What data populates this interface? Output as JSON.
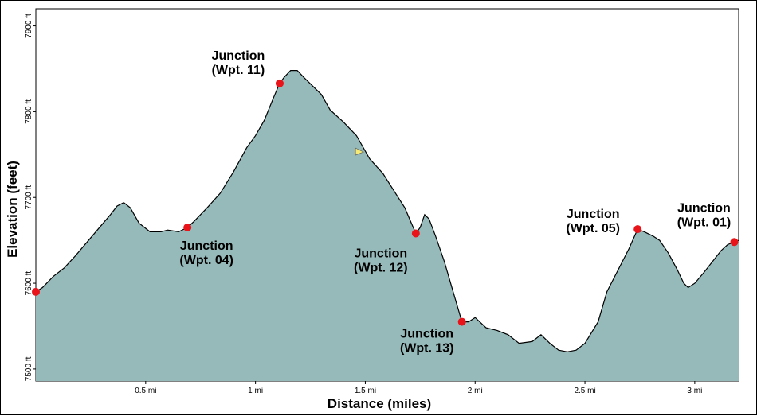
{
  "chart_data": {
    "type": "area",
    "xlabel": "Distance (miles)",
    "ylabel": "Elevation (feet)",
    "xlim": [
      0,
      3.2
    ],
    "ylim": [
      7486,
      7920
    ],
    "colors": {
      "fill": "#96baba",
      "line": "#000000",
      "marker": "#e8141a",
      "cursor": "#f5ea78"
    },
    "x_ticks": [
      {
        "value": 0.5,
        "label": "0.5 mi"
      },
      {
        "value": 1,
        "label": "1 mi"
      },
      {
        "value": 1.5,
        "label": "1.5 mi"
      },
      {
        "value": 2,
        "label": "2 mi"
      },
      {
        "value": 2.5,
        "label": "2.5 mi"
      },
      {
        "value": 3,
        "label": "3 mi"
      }
    ],
    "y_ticks": [
      {
        "value": 7500,
        "label": "7500 ft"
      },
      {
        "value": 7600,
        "label": "7600 ft"
      },
      {
        "value": 7700,
        "label": "7700 ft"
      },
      {
        "value": 7800,
        "label": "7800 ft"
      },
      {
        "value": 7900,
        "label": "7900 ft"
      }
    ],
    "profile": [
      [
        0.0,
        7590
      ],
      [
        0.03,
        7595
      ],
      [
        0.08,
        7608
      ],
      [
        0.13,
        7618
      ],
      [
        0.18,
        7632
      ],
      [
        0.24,
        7650
      ],
      [
        0.3,
        7668
      ],
      [
        0.34,
        7680
      ],
      [
        0.37,
        7690
      ],
      [
        0.4,
        7694
      ],
      [
        0.43,
        7688
      ],
      [
        0.47,
        7670
      ],
      [
        0.52,
        7660
      ],
      [
        0.57,
        7660
      ],
      [
        0.6,
        7662
      ],
      [
        0.65,
        7660
      ],
      [
        0.69,
        7665
      ],
      [
        0.72,
        7672
      ],
      [
        0.78,
        7688
      ],
      [
        0.84,
        7705
      ],
      [
        0.9,
        7730
      ],
      [
        0.96,
        7758
      ],
      [
        1.0,
        7772
      ],
      [
        1.04,
        7790
      ],
      [
        1.08,
        7815
      ],
      [
        1.11,
        7833
      ],
      [
        1.13,
        7840
      ],
      [
        1.16,
        7848
      ],
      [
        1.19,
        7848
      ],
      [
        1.22,
        7840
      ],
      [
        1.26,
        7830
      ],
      [
        1.3,
        7820
      ],
      [
        1.34,
        7802
      ],
      [
        1.4,
        7788
      ],
      [
        1.46,
        7772
      ],
      [
        1.52,
        7745
      ],
      [
        1.58,
        7728
      ],
      [
        1.64,
        7704
      ],
      [
        1.68,
        7688
      ],
      [
        1.71,
        7670
      ],
      [
        1.73,
        7658
      ],
      [
        1.75,
        7665
      ],
      [
        1.77,
        7680
      ],
      [
        1.79,
        7675
      ],
      [
        1.82,
        7655
      ],
      [
        1.86,
        7625
      ],
      [
        1.9,
        7590
      ],
      [
        1.94,
        7555
      ],
      [
        1.97,
        7555
      ],
      [
        2.0,
        7560
      ],
      [
        2.05,
        7548
      ],
      [
        2.1,
        7545
      ],
      [
        2.15,
        7540
      ],
      [
        2.2,
        7530
      ],
      [
        2.26,
        7532
      ],
      [
        2.3,
        7540
      ],
      [
        2.34,
        7530
      ],
      [
        2.38,
        7522
      ],
      [
        2.42,
        7520
      ],
      [
        2.46,
        7522
      ],
      [
        2.5,
        7530
      ],
      [
        2.56,
        7555
      ],
      [
        2.6,
        7590
      ],
      [
        2.65,
        7615
      ],
      [
        2.7,
        7640
      ],
      [
        2.74,
        7663
      ],
      [
        2.77,
        7660
      ],
      [
        2.81,
        7655
      ],
      [
        2.84,
        7650
      ],
      [
        2.88,
        7635
      ],
      [
        2.92,
        7616
      ],
      [
        2.95,
        7600
      ],
      [
        2.97,
        7595
      ],
      [
        3.0,
        7600
      ],
      [
        3.04,
        7612
      ],
      [
        3.08,
        7625
      ],
      [
        3.12,
        7638
      ],
      [
        3.15,
        7645
      ],
      [
        3.18,
        7648
      ],
      [
        3.2,
        7650
      ]
    ],
    "waypoints": [
      {
        "x": 0.0,
        "y": 7590
      },
      {
        "x": 0.69,
        "y": 7665,
        "line1": "Junction",
        "line2": "(Wpt. 04)"
      },
      {
        "x": 1.11,
        "y": 7833,
        "line1": "Junction",
        "line2": "(Wpt. 11)"
      },
      {
        "x": 1.73,
        "y": 7658,
        "line1": "Junction",
        "line2": "(Wpt. 12)"
      },
      {
        "x": 1.94,
        "y": 7555,
        "line1": "Junction",
        "line2": "(Wpt. 13)"
      },
      {
        "x": 2.74,
        "y": 7663,
        "line1": "Junction",
        "line2": "(Wpt. 05)"
      },
      {
        "x": 3.18,
        "y": 7648,
        "line1": "Junction",
        "line2": "(Wpt. 01)"
      }
    ],
    "cursor": {
      "x": 1.47,
      "y": 7753
    }
  }
}
